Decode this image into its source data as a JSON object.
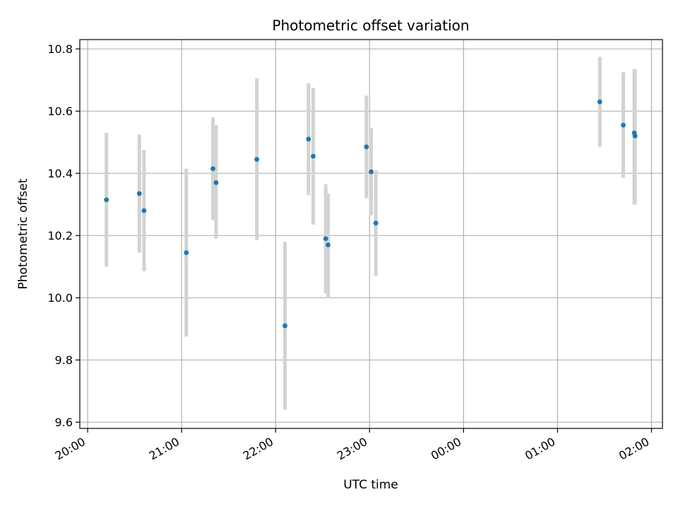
{
  "chart_data": {
    "type": "scatter",
    "title": "Photometric offset variation",
    "xlabel": "UTC time",
    "ylabel": "Photometric offset",
    "grid": true,
    "x_range_utc": [
      "2023-01-01T19:55:00Z",
      "2023-01-02T02:07:00Z"
    ],
    "ylim": [
      9.58,
      10.83
    ],
    "x_ticks": [
      {
        "time": "2023-01-01T20:00:00Z",
        "label": "20:00"
      },
      {
        "time": "2023-01-01T21:00:00Z",
        "label": "21:00"
      },
      {
        "time": "2023-01-01T22:00:00Z",
        "label": "22:00"
      },
      {
        "time": "2023-01-01T23:00:00Z",
        "label": "23:00"
      },
      {
        "time": "2023-01-02T00:00:00Z",
        "label": "00:00"
      },
      {
        "time": "2023-01-02T01:00:00Z",
        "label": "01:00"
      },
      {
        "time": "2023-01-02T02:00:00Z",
        "label": "02:00"
      }
    ],
    "y_ticks": [
      {
        "value": 9.6,
        "label": "9.6"
      },
      {
        "value": 9.8,
        "label": "9.8"
      },
      {
        "value": 10.0,
        "label": "10.0"
      },
      {
        "value": 10.2,
        "label": "10.2"
      },
      {
        "value": 10.4,
        "label": "10.4"
      },
      {
        "value": 10.6,
        "label": "10.6"
      },
      {
        "value": 10.8,
        "label": "10.8"
      }
    ],
    "colors": {
      "point": "#1f77b4",
      "errorbar": "#d3d3d3",
      "grid": "#b0b0b0",
      "axis": "#000000"
    },
    "points": [
      {
        "time": "2023-01-01T20:12:00Z",
        "y": 10.315,
        "ylow": 10.1,
        "yhigh": 10.53
      },
      {
        "time": "2023-01-01T20:33:00Z",
        "y": 10.335,
        "ylow": 10.145,
        "yhigh": 10.525
      },
      {
        "time": "2023-01-01T20:36:00Z",
        "y": 10.28,
        "ylow": 10.085,
        "yhigh": 10.475
      },
      {
        "time": "2023-01-01T21:03:00Z",
        "y": 10.145,
        "ylow": 9.875,
        "yhigh": 10.415
      },
      {
        "time": "2023-01-01T21:20:00Z",
        "y": 10.415,
        "ylow": 10.25,
        "yhigh": 10.58
      },
      {
        "time": "2023-01-01T21:22:00Z",
        "y": 10.37,
        "ylow": 10.19,
        "yhigh": 10.555
      },
      {
        "time": "2023-01-01T21:48:00Z",
        "y": 10.445,
        "ylow": 10.185,
        "yhigh": 10.705
      },
      {
        "time": "2023-01-01T22:06:00Z",
        "y": 9.91,
        "ylow": 9.64,
        "yhigh": 10.18
      },
      {
        "time": "2023-01-01T22:21:00Z",
        "y": 10.51,
        "ylow": 10.33,
        "yhigh": 10.69
      },
      {
        "time": "2023-01-01T22:24:00Z",
        "y": 10.455,
        "ylow": 10.235,
        "yhigh": 10.675
      },
      {
        "time": "2023-01-01T22:32:00Z",
        "y": 10.19,
        "ylow": 10.015,
        "yhigh": 10.365
      },
      {
        "time": "2023-01-01T22:33:30Z",
        "y": 10.17,
        "ylow": 10.0,
        "yhigh": 10.335
      },
      {
        "time": "2023-01-01T22:58:00Z",
        "y": 10.485,
        "ylow": 10.32,
        "yhigh": 10.65
      },
      {
        "time": "2023-01-01T23:01:00Z",
        "y": 10.405,
        "ylow": 10.265,
        "yhigh": 10.545
      },
      {
        "time": "2023-01-01T23:04:00Z",
        "y": 10.24,
        "ylow": 10.07,
        "yhigh": 10.41
      },
      {
        "time": "2023-01-02T01:27:00Z",
        "y": 10.63,
        "ylow": 10.485,
        "yhigh": 10.775
      },
      {
        "time": "2023-01-02T01:42:00Z",
        "y": 10.555,
        "ylow": 10.385,
        "yhigh": 10.725
      },
      {
        "time": "2023-01-02T01:49:00Z",
        "y": 10.53,
        "ylow": 10.3,
        "yhigh": 10.735
      },
      {
        "time": "2023-01-02T01:49:30Z",
        "y": 10.52,
        "ylow": 10.3,
        "yhigh": 10.735
      }
    ]
  }
}
